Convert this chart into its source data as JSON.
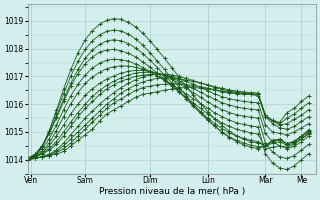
{
  "background_color": "#d4eeed",
  "plot_bg_color": "#d4eeed",
  "grid_color": "#b0d4d0",
  "line_color": "#1a5c1a",
  "xlabel": "Pression niveau de la mer( hPa )",
  "ylim": [
    1013.5,
    1019.6
  ],
  "yticks": [
    1014,
    1015,
    1016,
    1017,
    1018,
    1019
  ],
  "xlim": [
    0,
    40
  ],
  "day_labels": [
    "Ven",
    "Sam",
    "Dim",
    "Lun",
    "Mar",
    "Me"
  ],
  "day_positions": [
    0.5,
    8,
    17,
    25,
    33,
    38
  ],
  "series": [
    [
      1014.0,
      1014.05,
      1014.1,
      1014.15,
      1014.2,
      1014.3,
      1014.5,
      1014.7,
      1014.9,
      1015.1,
      1015.4,
      1015.65,
      1015.8,
      1015.95,
      1016.1,
      1016.25,
      1016.35,
      1016.4,
      1016.45,
      1016.5,
      1016.55,
      1016.58,
      1016.6,
      1016.6,
      1016.58,
      1016.55,
      1016.5,
      1016.45,
      1016.4,
      1016.38,
      1016.35,
      1016.35,
      1016.3,
      1015.55,
      1015.4,
      1015.35,
      1015.7,
      1015.85,
      1016.1,
      1016.3
    ],
    [
      1014.0,
      1014.05,
      1014.1,
      1014.15,
      1014.25,
      1014.4,
      1014.6,
      1014.85,
      1015.1,
      1015.35,
      1015.6,
      1015.85,
      1016.05,
      1016.2,
      1016.35,
      1016.5,
      1016.6,
      1016.65,
      1016.7,
      1016.72,
      1016.73,
      1016.72,
      1016.7,
      1016.67,
      1016.63,
      1016.58,
      1016.52,
      1016.47,
      1016.43,
      1016.4,
      1016.38,
      1016.37,
      1016.35,
      1015.6,
      1015.42,
      1015.3,
      1015.5,
      1015.65,
      1015.85,
      1016.05
    ],
    [
      1014.0,
      1014.05,
      1014.1,
      1014.18,
      1014.3,
      1014.5,
      1014.75,
      1015.0,
      1015.25,
      1015.5,
      1015.75,
      1016.0,
      1016.2,
      1016.4,
      1016.55,
      1016.7,
      1016.8,
      1016.88,
      1016.93,
      1016.95,
      1016.95,
      1016.92,
      1016.87,
      1016.82,
      1016.76,
      1016.7,
      1016.63,
      1016.57,
      1016.52,
      1016.47,
      1016.44,
      1016.42,
      1016.4,
      1015.6,
      1015.4,
      1015.25,
      1015.3,
      1015.45,
      1015.6,
      1015.8
    ],
    [
      1014.0,
      1014.05,
      1014.12,
      1014.2,
      1014.35,
      1014.6,
      1014.9,
      1015.2,
      1015.5,
      1015.75,
      1016.0,
      1016.22,
      1016.42,
      1016.6,
      1016.75,
      1016.88,
      1016.98,
      1017.05,
      1017.08,
      1017.08,
      1017.05,
      1017.0,
      1016.93,
      1016.85,
      1016.77,
      1016.68,
      1016.6,
      1016.53,
      1016.47,
      1016.43,
      1016.4,
      1016.38,
      1016.36,
      1015.55,
      1015.3,
      1015.15,
      1015.1,
      1015.2,
      1015.38,
      1015.55
    ],
    [
      1014.05,
      1014.1,
      1014.2,
      1014.35,
      1014.55,
      1014.85,
      1015.2,
      1015.55,
      1015.85,
      1016.1,
      1016.35,
      1016.55,
      1016.7,
      1016.83,
      1016.92,
      1017.0,
      1017.05,
      1017.07,
      1017.07,
      1017.05,
      1017.0,
      1016.92,
      1016.82,
      1016.72,
      1016.6,
      1016.48,
      1016.37,
      1016.27,
      1016.2,
      1016.14,
      1016.1,
      1016.07,
      1016.05,
      1015.25,
      1015.0,
      1014.95,
      1014.9,
      1015.0,
      1015.15,
      1015.3
    ],
    [
      1014.05,
      1014.1,
      1014.22,
      1014.4,
      1014.65,
      1015.0,
      1015.35,
      1015.7,
      1016.0,
      1016.28,
      1016.5,
      1016.68,
      1016.83,
      1016.95,
      1017.05,
      1017.12,
      1017.15,
      1017.15,
      1017.12,
      1017.05,
      1016.95,
      1016.83,
      1016.7,
      1016.57,
      1016.43,
      1016.3,
      1016.17,
      1016.05,
      1015.97,
      1015.9,
      1015.85,
      1015.82,
      1015.8,
      1014.95,
      1014.65,
      1014.5,
      1014.45,
      1014.55,
      1014.75,
      1014.95
    ],
    [
      1014.05,
      1014.12,
      1014.25,
      1014.5,
      1014.85,
      1015.25,
      1015.65,
      1016.0,
      1016.32,
      1016.55,
      1016.75,
      1016.9,
      1017.02,
      1017.12,
      1017.18,
      1017.22,
      1017.22,
      1017.18,
      1017.12,
      1017.03,
      1016.9,
      1016.75,
      1016.58,
      1016.42,
      1016.25,
      1016.08,
      1015.93,
      1015.8,
      1015.7,
      1015.62,
      1015.57,
      1015.53,
      1015.5,
      1014.6,
      1014.28,
      1014.1,
      1014.05,
      1014.15,
      1014.35,
      1014.55
    ],
    [
      1014.05,
      1014.15,
      1014.3,
      1014.6,
      1015.05,
      1015.55,
      1016.02,
      1016.42,
      1016.75,
      1016.98,
      1017.15,
      1017.28,
      1017.35,
      1017.38,
      1017.37,
      1017.33,
      1017.25,
      1017.15,
      1017.02,
      1016.88,
      1016.72,
      1016.55,
      1016.38,
      1016.2,
      1016.02,
      1015.85,
      1015.68,
      1015.55,
      1015.43,
      1015.33,
      1015.27,
      1015.22,
      1015.18,
      1014.22,
      1013.88,
      1013.7,
      1013.65,
      1013.78,
      1014.0,
      1014.22
    ],
    [
      1014.05,
      1014.18,
      1014.4,
      1014.75,
      1015.25,
      1015.8,
      1016.3,
      1016.72,
      1017.05,
      1017.3,
      1017.48,
      1017.58,
      1017.62,
      1017.6,
      1017.55,
      1017.45,
      1017.32,
      1017.18,
      1017.02,
      1016.85,
      1016.65,
      1016.45,
      1016.25,
      1016.05,
      1015.85,
      1015.65,
      1015.48,
      1015.32,
      1015.2,
      1015.1,
      1015.03,
      1014.97,
      1014.92,
      1014.4,
      1014.45,
      1014.5,
      1014.4,
      1014.48,
      1014.65,
      1014.85
    ],
    [
      1014.05,
      1014.2,
      1014.5,
      1014.95,
      1015.5,
      1016.1,
      1016.65,
      1017.1,
      1017.45,
      1017.7,
      1017.88,
      1017.95,
      1017.97,
      1017.92,
      1017.83,
      1017.7,
      1017.52,
      1017.33,
      1017.12,
      1016.9,
      1016.68,
      1016.45,
      1016.2,
      1015.97,
      1015.73,
      1015.5,
      1015.3,
      1015.12,
      1014.97,
      1014.85,
      1014.77,
      1014.7,
      1014.65,
      1014.48,
      1014.6,
      1014.65,
      1014.52,
      1014.6,
      1014.75,
      1014.92
    ],
    [
      1014.0,
      1014.15,
      1014.45,
      1014.95,
      1015.55,
      1016.18,
      1016.75,
      1017.25,
      1017.65,
      1017.95,
      1018.15,
      1018.28,
      1018.32,
      1018.28,
      1018.18,
      1018.02,
      1017.82,
      1017.58,
      1017.32,
      1017.05,
      1016.77,
      1016.48,
      1016.2,
      1015.93,
      1015.67,
      1015.42,
      1015.2,
      1015.0,
      1014.83,
      1014.7,
      1014.6,
      1014.52,
      1014.47,
      1014.5,
      1014.68,
      1014.72,
      1014.58,
      1014.65,
      1014.82,
      1015.0
    ],
    [
      1014.0,
      1014.15,
      1014.48,
      1015.02,
      1015.7,
      1016.38,
      1017.02,
      1017.55,
      1017.97,
      1018.28,
      1018.5,
      1018.62,
      1018.67,
      1018.63,
      1018.52,
      1018.35,
      1018.12,
      1017.85,
      1017.55,
      1017.25,
      1016.93,
      1016.62,
      1016.3,
      1016.0,
      1015.72,
      1015.45,
      1015.2,
      1014.98,
      1014.8,
      1014.65,
      1014.53,
      1014.45,
      1014.4,
      1014.48,
      1014.68,
      1014.72,
      1014.58,
      1014.67,
      1014.85,
      1015.05
    ],
    [
      1014.0,
      1014.12,
      1014.45,
      1015.05,
      1015.78,
      1016.55,
      1017.25,
      1017.85,
      1018.32,
      1018.65,
      1018.88,
      1019.02,
      1019.08,
      1019.05,
      1018.95,
      1018.78,
      1018.55,
      1018.28,
      1017.97,
      1017.65,
      1017.32,
      1016.98,
      1016.65,
      1016.33,
      1016.02,
      1015.73,
      1015.47,
      1015.23,
      1015.03,
      1014.87,
      1014.74,
      1014.65,
      1014.6,
      1014.52,
      1014.7,
      1014.75,
      1014.58,
      1014.65,
      1014.85,
      1015.08
    ]
  ]
}
